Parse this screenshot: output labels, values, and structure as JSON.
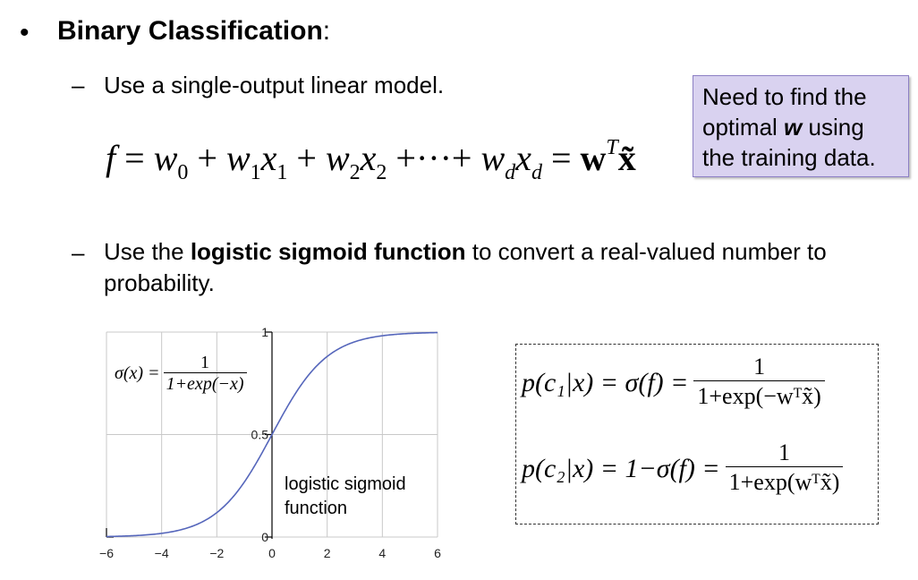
{
  "bullet": "•",
  "heading": {
    "bold": "Binary Classification",
    "tail": ":"
  },
  "items": [
    {
      "dash": "–",
      "text": "Use a single-output linear model."
    },
    {
      "dash": "–",
      "pre": "Use the ",
      "bold": "logistic sigmoid function",
      "post": " to convert a real-valued number to probability."
    }
  ],
  "callout": {
    "line1": "Need to find the",
    "line2_pre": "optimal ",
    "line2_w": "w",
    "line2_post": " using",
    "line3": "the training data.",
    "bg_color": "#d9d2f0"
  },
  "equation": {
    "f": "f",
    "eq": "=",
    "w0": "w",
    "s0": "0",
    "w1": "w",
    "x1": "x",
    "s1": "1",
    "w2": "w",
    "x2": "x",
    "s2": "2",
    "dots": "+···+",
    "wd": "w",
    "xd": "x",
    "sd": "d",
    "rhs_w": "w",
    "rhs_T": "T",
    "rhs_x": "x̃"
  },
  "posterior": {
    "row1_lhs": "p(c₁|x) = σ(f) =",
    "row1_num": "1",
    "row1_den": "1+exp(−wᵀx̃)",
    "row2_lhs": "p(c₂|x) = 1−σ(f) =",
    "row2_num": "1",
    "row2_den": "1+exp(wᵀx̃)"
  },
  "chart_data": {
    "type": "line",
    "function": "sigmoid",
    "x_ticks": [
      "−6",
      "−4",
      "−2",
      "0",
      "2",
      "4",
      "6"
    ],
    "y_ticks": [
      "0",
      "0.5",
      "1"
    ],
    "xlim": [
      -6,
      6
    ],
    "ylim": [
      0,
      1
    ],
    "grid": true,
    "formula_lhs": "σ(x) =",
    "formula_num": "1",
    "formula_den": "1+exp(−x)",
    "label_line1": "logistic sigmoid",
    "label_line2": "function",
    "line_color": "#5566bb"
  }
}
